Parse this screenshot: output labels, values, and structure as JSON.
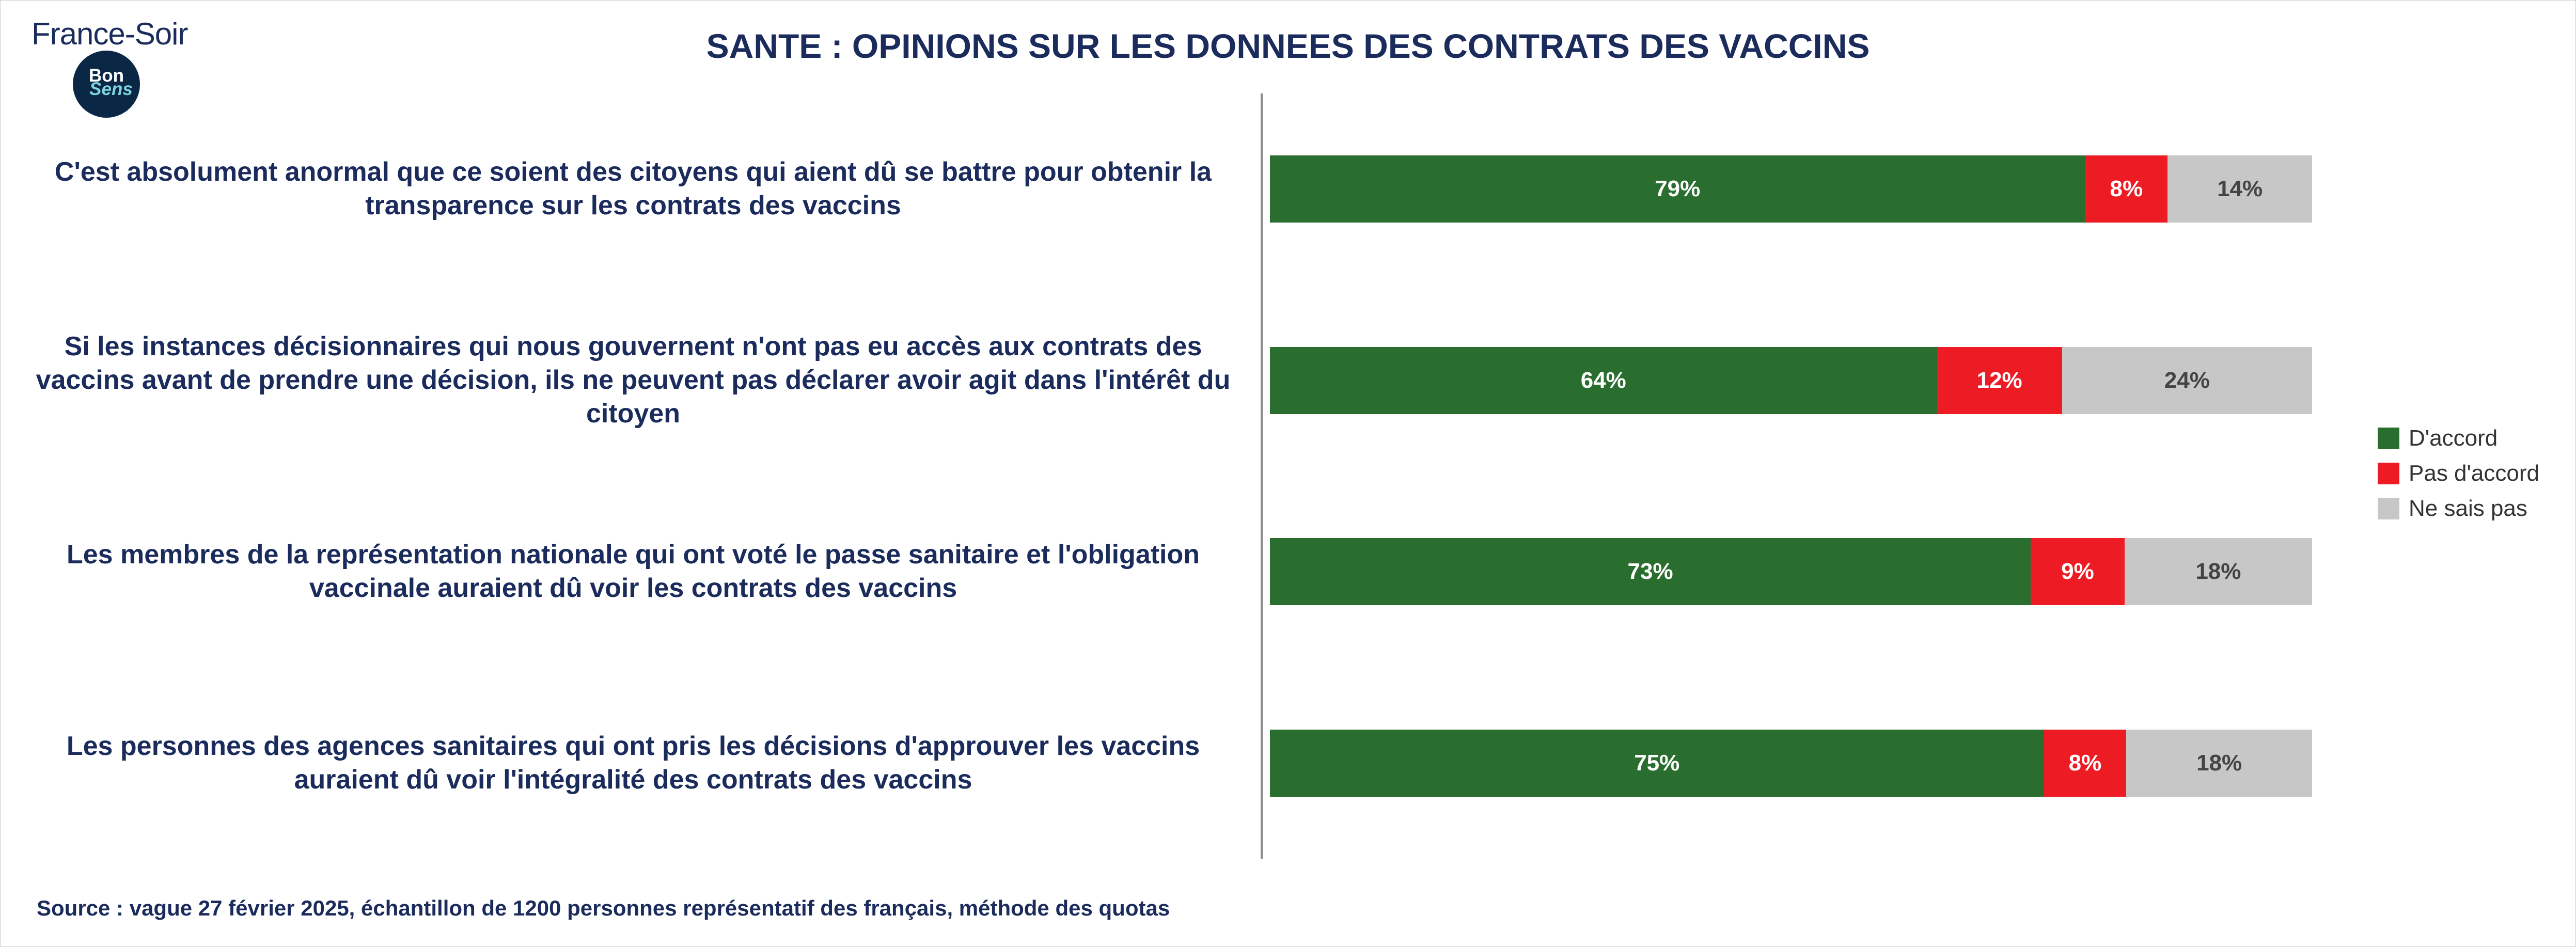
{
  "logo": {
    "text": "France-Soir",
    "badge_line1": "Bon",
    "badge_line2": "Sens"
  },
  "title": "SANTE : OPINIONS SUR LES DONNEES DES CONTRATS DES VACCINS",
  "legend": {
    "items": [
      {
        "label": "D'accord",
        "color": "#2a6e2f"
      },
      {
        "label": "Pas d'accord",
        "color": "#ed1c24"
      },
      {
        "label": "Ne sais pas",
        "color": "#c7c7c7"
      }
    ]
  },
  "chart": {
    "type": "stacked-horizontal-bar",
    "value_suffix": "%",
    "label_color": "#1a2b5c",
    "label_fontsize": 52,
    "value_fontsize": 44,
    "background": "#ffffff",
    "rows": [
      {
        "label": "C'est absolument anormal que ce soient des citoyens qui aient dû se battre pour obtenir la transparence sur les contrats des vaccins",
        "agree": 79,
        "disagree": 8,
        "dontknow": 14
      },
      {
        "label": "Si les instances décisionnaires qui nous gouvernent n'ont pas eu accès aux contrats des vaccins avant de prendre une décision, ils ne peuvent pas déclarer avoir agit dans l'intérêt du citoyen",
        "agree": 64,
        "disagree": 12,
        "dontknow": 24
      },
      {
        "label": "Les membres de la représentation nationale qui ont voté le passe sanitaire et l'obligation vaccinale auraient dû voir les contrats des vaccins",
        "agree": 73,
        "disagree": 9,
        "dontknow": 18
      },
      {
        "label": "Les personnes des agences sanitaires qui ont pris les décisions d'approuver les vaccins auraient dû voir l'intégralité des contrats des vaccins",
        "agree": 75,
        "disagree": 8,
        "dontknow": 18
      }
    ]
  },
  "source": "Source : vague 27 février 2025, échantillon de 1200 personnes représentatif des français, méthode des quotas"
}
